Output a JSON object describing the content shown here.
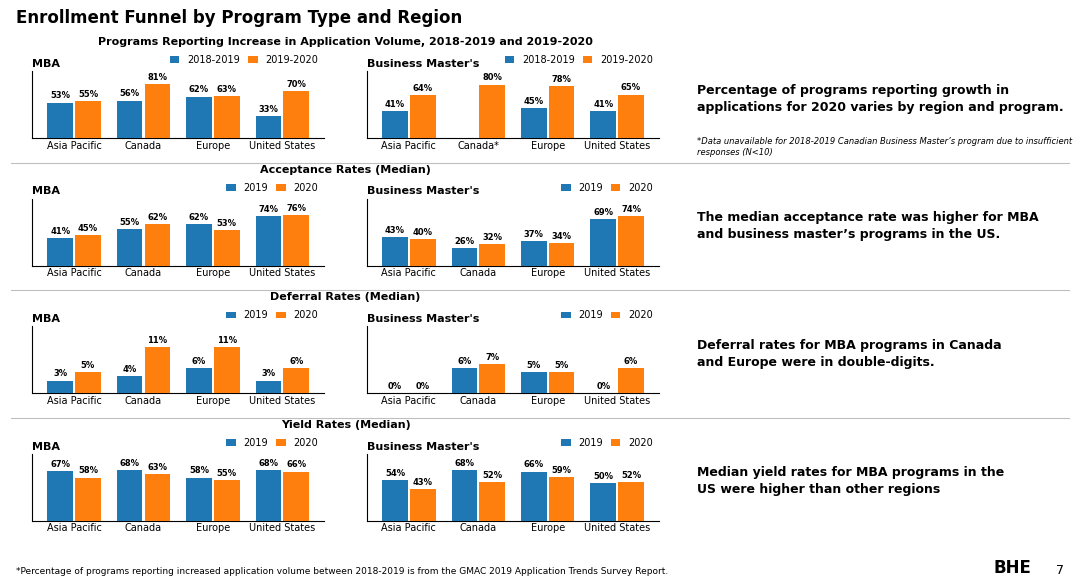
{
  "title": "Enrollment Funnel by Program Type and Region",
  "annotations": [
    "*Percentage of programs reporting increased application volume between 2018-2019 is from the GMAC 2019 Application Trends Survey Report.",
    "BHE",
    "7"
  ],
  "chart_data": [
    {
      "type": "bar",
      "title": "MBA",
      "annotations": [
        "Programs Reporting Increase in Application Volume, 2018-2019 and 2019-2020",
        "Percentage of programs reporting growth in\napplications for 2020 varies by region and program.",
        "*Data unavailable for 2018-2019 Canadian Business Master’s program due to insufficient responses (N<10)"
      ],
      "categories": [
        "Asia Pacific",
        "Canada",
        "Europe",
        "United States"
      ],
      "series": [
        {
          "name": "2018-2019",
          "values": [
            53,
            56,
            62,
            33
          ],
          "value_labels": [
            "53%",
            "56%",
            "62%",
            "33%"
          ]
        },
        {
          "name": "2019-2020",
          "values": [
            55,
            81,
            63,
            70
          ],
          "value_labels": [
            "55%",
            "81%",
            "63%",
            "70%"
          ]
        }
      ],
      "ylim": [
        0,
        100
      ],
      "data_labels": true,
      "legend": "lower right",
      "tick_labels": "x"
    },
    {
      "type": "bar",
      "title": "Business Master's",
      "categories": [
        "Asia Pacific",
        "Canada*",
        "Europe",
        "United States"
      ],
      "series": [
        {
          "name": "2018-2019",
          "values": [
            41,
            null,
            45,
            41
          ],
          "value_labels": [
            "41%",
            null,
            "45%",
            "41%"
          ]
        },
        {
          "name": "2019-2020",
          "values": [
            64,
            80,
            78,
            65
          ],
          "value_labels": [
            "64%",
            "80%",
            "78%",
            "65%"
          ]
        }
      ],
      "ylim": [
        0,
        100
      ],
      "data_labels": true,
      "legend": "lower right",
      "tick_labels": "x"
    },
    {
      "type": "bar",
      "title": "MBA",
      "annotations": [
        "Acceptance Rates (Median)",
        "The median acceptance rate was higher for MBA\nand business master’s programs in the US."
      ],
      "categories": [
        "Asia Pacific",
        "Canada",
        "Europe",
        "United States"
      ],
      "series": [
        {
          "name": "2019",
          "values": [
            41,
            55,
            62,
            74
          ],
          "value_labels": [
            "41%",
            "55%",
            "62%",
            "74%"
          ]
        },
        {
          "name": "2020",
          "values": [
            45,
            62,
            53,
            76
          ],
          "value_labels": [
            "45%",
            "62%",
            "53%",
            "76%"
          ]
        }
      ],
      "ylim": [
        0,
        100
      ],
      "data_labels": true,
      "legend": "lower right",
      "tick_labels": "x"
    },
    {
      "type": "bar",
      "title": "Business Master's",
      "categories": [
        "Asia Pacific",
        "Canada",
        "Europe",
        "United States"
      ],
      "series": [
        {
          "name": "2019",
          "values": [
            43,
            26,
            37,
            69
          ],
          "value_labels": [
            "43%",
            "26%",
            "37%",
            "69%"
          ]
        },
        {
          "name": "2020",
          "values": [
            40,
            32,
            34,
            74
          ],
          "value_labels": [
            "40%",
            "32%",
            "34%",
            "74%"
          ]
        }
      ],
      "ylim": [
        0,
        100
      ],
      "data_labels": true,
      "legend": "lower right",
      "tick_labels": "x"
    },
    {
      "type": "bar",
      "title": "MBA",
      "annotations": [
        "Deferral Rates (Median)",
        "Deferral rates for MBA programs in Canada\nand Europe were in double-digits."
      ],
      "categories": [
        "Asia Pacific",
        "Canada",
        "Europe",
        "United States"
      ],
      "series": [
        {
          "name": "2019",
          "values": [
            3,
            4,
            6,
            3
          ],
          "value_labels": [
            "3%",
            "4%",
            "6%",
            "3%"
          ]
        },
        {
          "name": "2020",
          "values": [
            5,
            11,
            11,
            6
          ],
          "value_labels": [
            "5%",
            "11%",
            "11%",
            "6%"
          ]
        }
      ],
      "ylim": [
        0,
        16
      ],
      "data_labels": true,
      "legend": "lower right",
      "tick_labels": "x"
    },
    {
      "type": "bar",
      "title": "Business Master's",
      "categories": [
        "Asia Pacific",
        "Canada",
        "Europe",
        "United States"
      ],
      "series": [
        {
          "name": "2019",
          "values": [
            0,
            6,
            5,
            0
          ],
          "value_labels": [
            "0%",
            "6%",
            "5%",
            "0%"
          ]
        },
        {
          "name": "2020",
          "values": [
            0,
            7,
            5,
            6
          ],
          "value_labels": [
            "0%",
            "7%",
            "5%",
            "6%"
          ]
        }
      ],
      "ylim": [
        0,
        16
      ],
      "data_labels": true,
      "legend": "lower right",
      "tick_labels": "x"
    },
    {
      "type": "bar",
      "title": "MBA",
      "annotations": [
        "Yield Rates (Median)",
        "Median yield rates for MBA programs in the\nUS were higher than other regions"
      ],
      "categories": [
        "Asia Pacific",
        "Canada",
        "Europe",
        "United States"
      ],
      "series": [
        {
          "name": "2019",
          "values": [
            67,
            68,
            58,
            68
          ],
          "value_labels": [
            "67%",
            "68%",
            "58%",
            "68%"
          ]
        },
        {
          "name": "2020",
          "values": [
            58,
            63,
            55,
            66
          ],
          "value_labels": [
            "58%",
            "63%",
            "55%",
            "66%"
          ]
        }
      ],
      "ylim": [
        0,
        90
      ],
      "data_labels": true,
      "legend": "lower right",
      "tick_labels": "x"
    },
    {
      "type": "bar",
      "title": "Business Master's",
      "categories": [
        "Asia Pacific",
        "Canada",
        "Europe",
        "United States"
      ],
      "series": [
        {
          "name": "2019",
          "values": [
            54,
            68,
            66,
            50
          ],
          "value_labels": [
            "54%",
            "68%",
            "66%",
            "50%"
          ]
        },
        {
          "name": "2020",
          "values": [
            43,
            52,
            59,
            52
          ],
          "value_labels": [
            "43%",
            "52%",
            "59%",
            "52%"
          ]
        }
      ],
      "ylim": [
        0,
        90
      ],
      "data_labels": true,
      "legend": "lower right",
      "tick_labels": "x"
    }
  ]
}
